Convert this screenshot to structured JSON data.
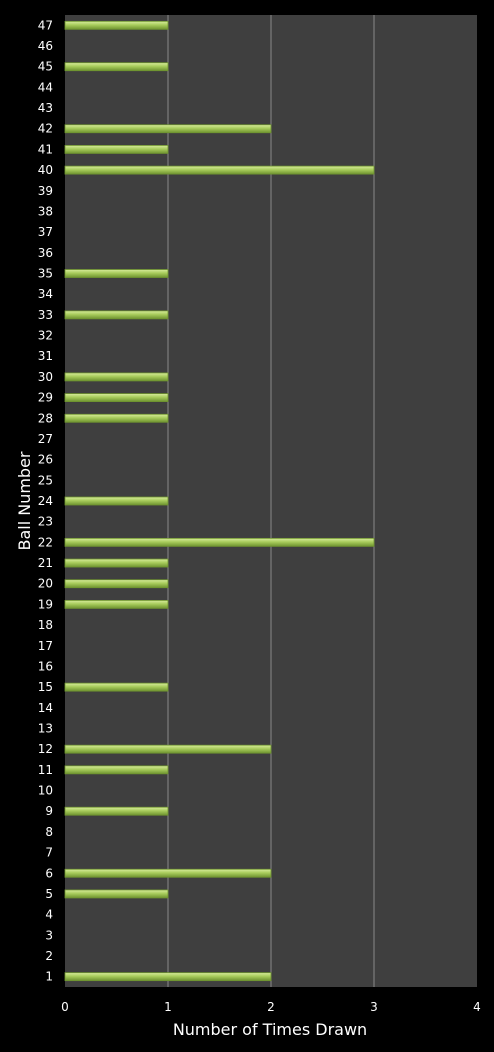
{
  "chart_data": {
    "type": "bar",
    "orientation": "horizontal",
    "xlabel": "Number of Times Drawn",
    "ylabel": "Ball Number",
    "xlim": [
      0,
      4
    ],
    "x_ticks": [
      "0",
      "1",
      "2",
      "3",
      "4"
    ],
    "grid": "vertical",
    "categories": [
      "1",
      "2",
      "3",
      "4",
      "5",
      "6",
      "7",
      "8",
      "9",
      "10",
      "11",
      "12",
      "13",
      "14",
      "15",
      "16",
      "17",
      "18",
      "19",
      "20",
      "21",
      "22",
      "23",
      "24",
      "25",
      "26",
      "27",
      "28",
      "29",
      "30",
      "31",
      "32",
      "33",
      "34",
      "35",
      "36",
      "37",
      "38",
      "39",
      "40",
      "41",
      "42",
      "43",
      "44",
      "45",
      "46",
      "47"
    ],
    "values": [
      2,
      0,
      0,
      0,
      1,
      2,
      0,
      0,
      1,
      0,
      1,
      2,
      0,
      0,
      1,
      0,
      0,
      0,
      1,
      1,
      1,
      3,
      0,
      1,
      0,
      0,
      0,
      1,
      1,
      1,
      0,
      0,
      1,
      0,
      1,
      0,
      0,
      0,
      0,
      3,
      1,
      2,
      0,
      0,
      1,
      0,
      1
    ],
    "colors": {
      "background": "#000000",
      "plot_area": "#3f3f3f",
      "grid": "#8a8a8a",
      "bar_light": "#d8ec9c",
      "bar_mid": "#a8cc5c",
      "bar_dark": "#6f9430",
      "text": "#ffffff"
    }
  }
}
